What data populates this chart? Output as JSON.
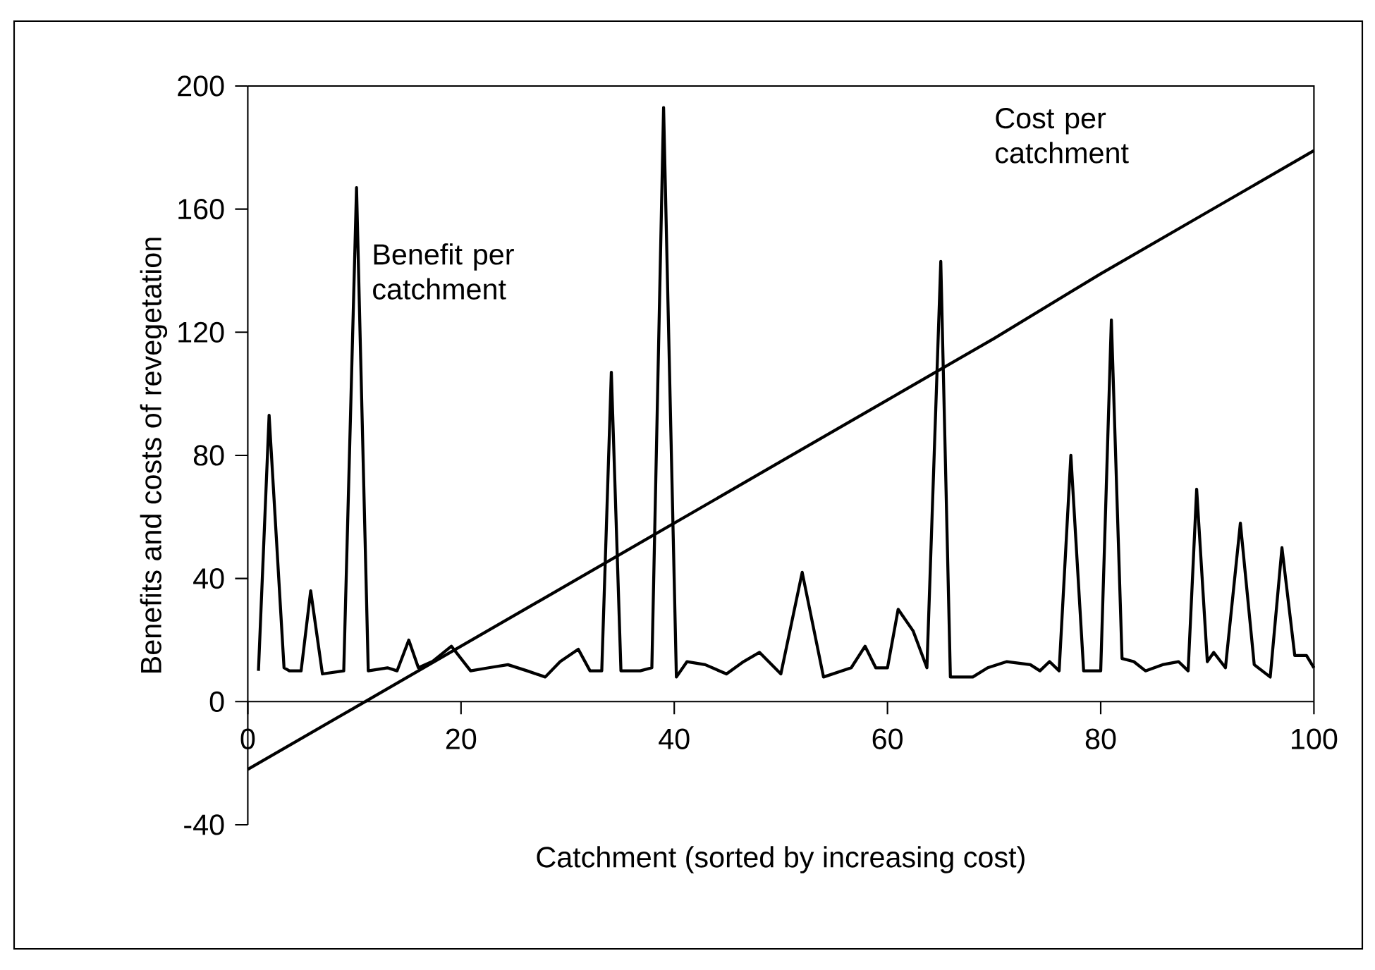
{
  "chart_data": {
    "type": "line",
    "xlabel": "Catchment (sorted by increasing cost)",
    "ylabel": "Benefits and costs of revegetation",
    "xlim": [
      0,
      100
    ],
    "xticks": [
      0,
      20,
      40,
      60,
      80,
      100
    ],
    "ylim": [
      -40,
      200
    ],
    "yticks": [
      -40,
      0,
      40,
      80,
      120,
      160,
      200
    ],
    "grid": false,
    "legend": false,
    "marker": "none",
    "line_style": "solid",
    "series": [
      {
        "name": "Benefit per catchment",
        "color": "#000000",
        "x": [
          1,
          2,
          3.4,
          3.9,
          5,
          5.9,
          7,
          9,
          10.2,
          11.3,
          13.1,
          14,
          15.1,
          16,
          17.3,
          19.1,
          20.9,
          22.6,
          24.4,
          26.2,
          27.9,
          29.3,
          31,
          32.1,
          33.2,
          34.1,
          35,
          36.8,
          37.9,
          39,
          40.2,
          41.2,
          42.9,
          44.9,
          46.5,
          48,
          50,
          52,
          54,
          56.6,
          57.9,
          58.9,
          60,
          61,
          62.4,
          63.7,
          65,
          65.9,
          68,
          69.4,
          71.2,
          73.4,
          74.3,
          75.2,
          76.1,
          77.2,
          78.4,
          80,
          81,
          82,
          83.1,
          84.2,
          85.8,
          87.3,
          88.2,
          89,
          90,
          90.6,
          91.7,
          93.1,
          94.4,
          95.9,
          97,
          98.2,
          99.3,
          100
        ],
        "values": [
          10,
          93,
          11,
          10,
          10,
          36,
          9,
          10,
          167,
          10,
          11,
          10,
          20,
          11,
          13,
          18,
          10,
          11,
          12,
          10,
          8,
          13,
          17,
          10,
          10,
          107,
          10,
          10,
          11,
          193,
          8,
          13,
          12,
          9,
          13,
          16,
          9,
          42,
          8,
          11,
          18,
          11,
          11,
          30,
          23,
          11,
          143,
          8,
          8,
          11,
          13,
          12,
          10,
          13,
          10,
          80,
          10,
          10,
          124,
          14,
          13,
          10,
          12,
          13,
          10,
          69,
          13,
          16,
          11,
          58,
          12,
          8,
          50,
          15,
          15,
          11
        ]
      },
      {
        "name": "Cost per catchment",
        "color": "#000000",
        "x": [
          0,
          10,
          20,
          30,
          40,
          50,
          60,
          70,
          80,
          90,
          100
        ],
        "values": [
          -22,
          -2,
          18,
          38,
          58,
          78,
          98,
          118,
          139,
          159,
          179
        ]
      }
    ]
  }
}
